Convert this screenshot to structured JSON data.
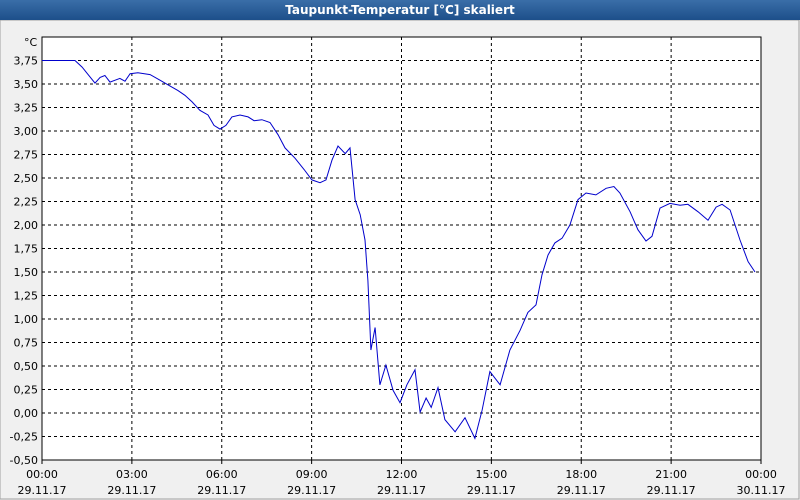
{
  "chart_data": {
    "type": "line",
    "title": "Taupunkt-Temperatur [°C] skaliert",
    "y_unit": "°C",
    "xlim": [
      0,
      24
    ],
    "xticks": [
      {
        "value": 0,
        "label": "00:00",
        "date": "29.11.17"
      },
      {
        "value": 3,
        "label": "03:00",
        "date": "29.11.17"
      },
      {
        "value": 6,
        "label": "06:00",
        "date": "29.11.17"
      },
      {
        "value": 9,
        "label": "09:00",
        "date": "29.11.17"
      },
      {
        "value": 12,
        "label": "12:00",
        "date": "29.11.17"
      },
      {
        "value": 15,
        "label": "15:00",
        "date": "29.11.17"
      },
      {
        "value": 18,
        "label": "18:00",
        "date": "29.11.17"
      },
      {
        "value": 21,
        "label": "21:00",
        "date": "29.11.17"
      },
      {
        "value": 24,
        "label": "00:00",
        "date": "30.11.17"
      }
    ],
    "ylim": [
      -0.5,
      4.0
    ],
    "yticks": [
      {
        "value": -0.5,
        "label": "-0,50"
      },
      {
        "value": -0.25,
        "label": "-0,25"
      },
      {
        "value": 0,
        "label": "0,00"
      },
      {
        "value": 0.25,
        "label": "0,25"
      },
      {
        "value": 0.5,
        "label": "0,50"
      },
      {
        "value": 0.75,
        "label": "0,75"
      },
      {
        "value": 1,
        "label": "1,00"
      },
      {
        "value": 1.25,
        "label": "1,25"
      },
      {
        "value": 1.5,
        "label": "1,50"
      },
      {
        "value": 1.75,
        "label": "1,75"
      },
      {
        "value": 2,
        "label": "2,00"
      },
      {
        "value": 2.25,
        "label": "2,25"
      },
      {
        "value": 2.5,
        "label": "2,50"
      },
      {
        "value": 2.75,
        "label": "2,75"
      },
      {
        "value": 3,
        "label": "3,00"
      },
      {
        "value": 3.25,
        "label": "3,25"
      },
      {
        "value": 3.5,
        "label": "3,50"
      },
      {
        "value": 3.75,
        "label": "3,75"
      }
    ],
    "grid": true,
    "color": "#0000cc",
    "x": [
      0,
      0.27,
      1.1,
      1.34,
      1.54,
      1.77,
      1.94,
      2.1,
      2.27,
      2.44,
      2.6,
      2.77,
      2.94,
      3.2,
      3.61,
      3.94,
      4.27,
      4.54,
      4.77,
      5.01,
      5.27,
      5.54,
      5.74,
      5.94,
      6.14,
      6.34,
      6.61,
      6.88,
      7.08,
      7.34,
      7.61,
      7.88,
      8.11,
      8.45,
      8.75,
      9.01,
      9.28,
      9.48,
      9.68,
      9.88,
      10.12,
      10.28,
      10.45,
      10.62,
      10.78,
      10.88,
      10.98,
      11.12,
      11.28,
      11.48,
      11.72,
      11.95,
      12.18,
      12.45,
      12.62,
      12.82,
      12.99,
      13.22,
      13.45,
      13.79,
      14.12,
      14.45,
      14.69,
      14.95,
      15.29,
      15.62,
      15.96,
      16.22,
      16.49,
      16.69,
      16.89,
      17.12,
      17.36,
      17.62,
      17.89,
      18.16,
      18.49,
      18.83,
      19.09,
      19.29,
      19.63,
      19.89,
      20.16,
      20.36,
      20.63,
      20.96,
      21.3,
      21.56,
      21.9,
      22.23,
      22.5,
      22.7,
      22.97,
      23.3,
      23.57,
      23.8
    ],
    "values": [
      3.75,
      3.75,
      3.75,
      3.68,
      3.6,
      3.51,
      3.57,
      3.59,
      3.52,
      3.54,
      3.56,
      3.53,
      3.61,
      3.62,
      3.6,
      3.54,
      3.48,
      3.43,
      3.38,
      3.31,
      3.22,
      3.17,
      3.06,
      3.02,
      3.06,
      3.15,
      3.17,
      3.15,
      3.11,
      3.12,
      3.09,
      2.96,
      2.82,
      2.71,
      2.59,
      2.48,
      2.45,
      2.48,
      2.69,
      2.84,
      2.76,
      2.82,
      2.27,
      2.11,
      1.84,
      1.41,
      0.67,
      0.91,
      0.3,
      0.51,
      0.24,
      0.11,
      0.3,
      0.46,
      0.01,
      0.16,
      0.06,
      0.27,
      -0.07,
      -0.2,
      -0.05,
      -0.27,
      0.03,
      0.44,
      0.3,
      0.67,
      0.88,
      1.07,
      1.15,
      1.47,
      1.68,
      1.81,
      1.86,
      2.0,
      2.27,
      2.34,
      2.32,
      2.39,
      2.41,
      2.34,
      2.14,
      1.95,
      1.83,
      1.88,
      2.18,
      2.23,
      2.21,
      2.22,
      2.14,
      2.05,
      2.19,
      2.22,
      2.16,
      1.84,
      1.61,
      1.5
    ]
  }
}
